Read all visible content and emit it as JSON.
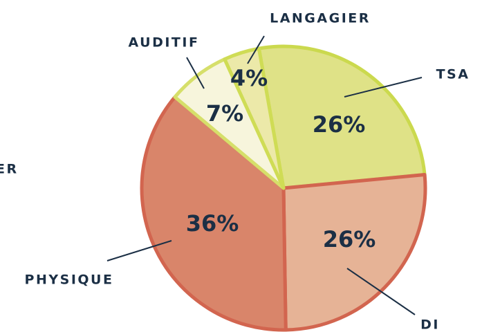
{
  "chart_data": {
    "type": "pie",
    "categories": [
      "TSA",
      "DI",
      "PHYSIQUE",
      "AUDITIF",
      "LANGAGIER"
    ],
    "values": [
      26,
      26,
      36,
      7,
      4
    ],
    "value_labels": [
      "26%",
      "26%",
      "36%",
      "7%",
      "4%"
    ],
    "colors": [
      "#dfe287",
      "#e6b396",
      "#d9856a",
      "#f7f5dc",
      "#ece9a9"
    ],
    "annotations": [
      "ER"
    ]
  }
}
